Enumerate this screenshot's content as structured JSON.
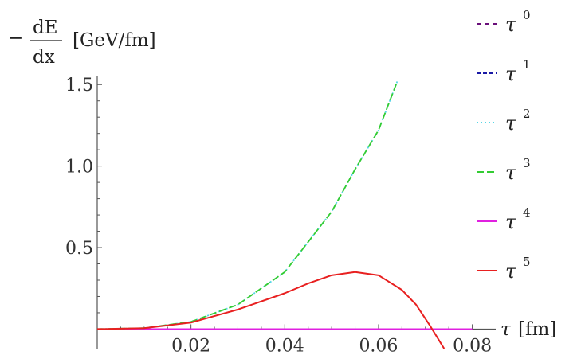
{
  "chart_data": {
    "type": "line",
    "ylabel": {
      "sign": "−",
      "numerator": "dE",
      "denominator": "dx",
      "unit": "[GeV/fm]"
    },
    "xlabel": {
      "symbol": "τ",
      "unit": "[fm]"
    },
    "xlim": [
      0,
      0.085
    ],
    "ylim": [
      -0.12,
      1.55
    ],
    "x_ticks": [
      {
        "value": 0.02,
        "label": "0.02"
      },
      {
        "value": 0.04,
        "label": "0.04"
      },
      {
        "value": 0.06,
        "label": "0.06"
      },
      {
        "value": 0.08,
        "label": "0.08"
      }
    ],
    "y_ticks": [
      {
        "value": 0.5,
        "label": "0.5"
      },
      {
        "value": 1.0,
        "label": "1.0"
      },
      {
        "value": 1.5,
        "label": "1.5"
      }
    ],
    "grid": false,
    "legend_position": "right",
    "series": [
      {
        "name_base": "τ",
        "name_sup": "0",
        "color": "#6a0f7a",
        "dash": "6,4",
        "x": [
          0,
          0.01,
          0.02,
          0.03,
          0.04,
          0.05,
          0.06,
          0.07,
          0.08
        ],
        "y": [
          0,
          0,
          0,
          0,
          0,
          0,
          0,
          0,
          0
        ]
      },
      {
        "name_base": "τ",
        "name_sup": "1",
        "color": "#1a1aa6",
        "dash": "5,3",
        "x": [
          0,
          0.01,
          0.02,
          0.03,
          0.04,
          0.05,
          0.06,
          0.07,
          0.08
        ],
        "y": [
          0,
          0,
          0,
          0,
          0,
          0,
          0,
          0,
          0
        ]
      },
      {
        "name_base": "τ",
        "name_sup": "2",
        "color": "#55d6e6",
        "dash": "2,3",
        "x": [
          0,
          0.01,
          0.02,
          0.03,
          0.04,
          0.05,
          0.055,
          0.06,
          0.064
        ],
        "y": [
          0,
          0.006,
          0.045,
          0.15,
          0.35,
          0.72,
          0.98,
          1.22,
          1.52
        ]
      },
      {
        "name_base": "τ",
        "name_sup": "3",
        "color": "#33cc33",
        "dash": "9,4",
        "x": [
          0,
          0.01,
          0.02,
          0.03,
          0.04,
          0.05,
          0.055,
          0.06,
          0.064
        ],
        "y": [
          0,
          0.006,
          0.045,
          0.15,
          0.35,
          0.72,
          0.98,
          1.22,
          1.52
        ]
      },
      {
        "name_base": "τ",
        "name_sup": "4",
        "color": "#e020e0",
        "dash": "",
        "x": [
          0,
          0.01,
          0.02,
          0.03,
          0.04,
          0.05,
          0.06,
          0.07,
          0.08
        ],
        "y": [
          0,
          0,
          0,
          0,
          0,
          0,
          0,
          0,
          0
        ]
      },
      {
        "name_base": "τ",
        "name_sup": "5",
        "color": "#e82020",
        "dash": "",
        "x": [
          0,
          0.01,
          0.02,
          0.03,
          0.04,
          0.045,
          0.05,
          0.055,
          0.06,
          0.065,
          0.068,
          0.071,
          0.074
        ],
        "y": [
          0,
          0.006,
          0.04,
          0.12,
          0.22,
          0.28,
          0.33,
          0.35,
          0.33,
          0.24,
          0.15,
          0.02,
          -0.12
        ]
      }
    ]
  }
}
